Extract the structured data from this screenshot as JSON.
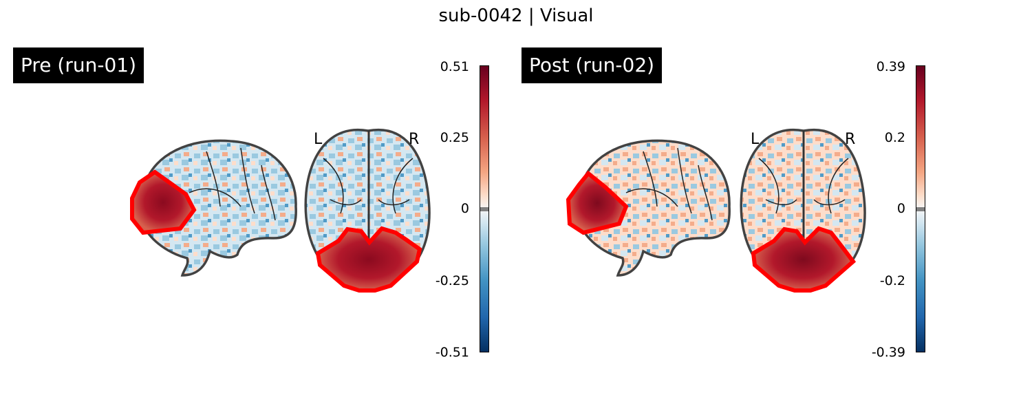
{
  "figure": {
    "title": "sub-0042 | Visual"
  },
  "panels": [
    {
      "label": "Pre (run-01)",
      "orientation": {
        "left": "L",
        "right": "R"
      },
      "colorbar": {
        "ticks": [
          "0.51",
          "0.25",
          "0",
          "-0.25",
          "-0.51"
        ],
        "vmin": -0.51,
        "vmax": 0.51,
        "colormap": "RdBu_r",
        "threshold_color": "#7f7f7f"
      },
      "roi_outline_color": "#ff0000"
    },
    {
      "label": "Post (run-02)",
      "orientation": {
        "left": "L",
        "right": "R"
      },
      "colorbar": {
        "ticks": [
          "0.39",
          "0.2",
          "0",
          "-0.2",
          "-0.39"
        ],
        "vmin": -0.39,
        "vmax": 0.39,
        "colormap": "RdBu_r",
        "threshold_color": "#7f7f7f"
      },
      "roi_outline_color": "#ff0000"
    }
  ]
}
